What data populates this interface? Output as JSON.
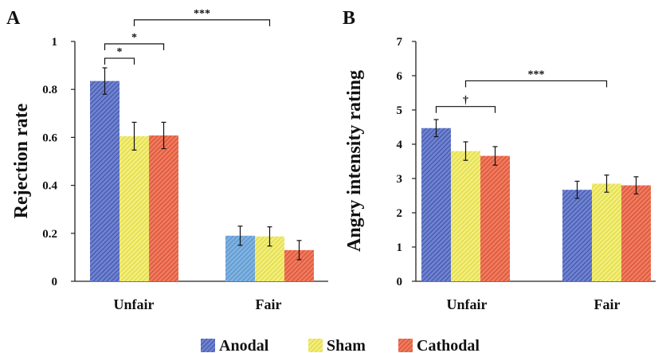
{
  "legend": [
    {
      "name": "Anodal",
      "color": "#4a5fb5",
      "pattern": "hatch"
    },
    {
      "name": "Sham",
      "color": "#e8e04c",
      "pattern": "hatch"
    },
    {
      "name": "Cathodal",
      "color": "#e0553a",
      "pattern": "hatch"
    }
  ],
  "chart_data": [
    {
      "type": "bar",
      "panel_label": "A",
      "ylabel": "Rejection rate",
      "xlabel": "",
      "ylim": [
        0,
        1
      ],
      "yticks": [
        "0",
        "0.2",
        "0.4",
        "0.6",
        "0.8",
        "1"
      ],
      "categories": [
        "Unfair",
        "Fair"
      ],
      "series": [
        {
          "name": "Anodal",
          "values": [
            0.835,
            0.19
          ],
          "errors": [
            0.055,
            0.04
          ]
        },
        {
          "name": "Sham",
          "values": [
            0.605,
            0.187
          ],
          "errors": [
            0.058,
            0.04
          ]
        },
        {
          "name": "Cathodal",
          "values": [
            0.608,
            0.13
          ],
          "errors": [
            0.055,
            0.04
          ]
        }
      ],
      "fair_anodal_color": "#5b9bd5",
      "significance": [
        {
          "from": [
            0,
            0
          ],
          "to": [
            0,
            1
          ],
          "label": "*",
          "y": 0.93
        },
        {
          "from": [
            0,
            0
          ],
          "to": [
            0,
            2
          ],
          "label": "*",
          "y": 0.99
        },
        {
          "from": [
            0,
            1
          ],
          "to": [
            1,
            1
          ],
          "label": "***",
          "y": 1.09
        }
      ],
      "grid": false
    },
    {
      "type": "bar",
      "panel_label": "B",
      "ylabel": "Angry intensity rating",
      "xlabel": "",
      "ylim": [
        0,
        7
      ],
      "yticks": [
        "0",
        "1",
        "2",
        "3",
        "4",
        "5",
        "6",
        "7"
      ],
      "categories": [
        "Unfair",
        "Fair"
      ],
      "series": [
        {
          "name": "Anodal",
          "values": [
            4.47,
            2.67
          ],
          "errors": [
            0.25,
            0.25
          ]
        },
        {
          "name": "Sham",
          "values": [
            3.8,
            2.85
          ],
          "errors": [
            0.27,
            0.25
          ]
        },
        {
          "name": "Cathodal",
          "values": [
            3.66,
            2.8
          ],
          "errors": [
            0.27,
            0.25
          ]
        }
      ],
      "significance": [
        {
          "from": [
            0,
            0
          ],
          "to": [
            0,
            2
          ],
          "label": "†",
          "y": 5.1
        },
        {
          "from": [
            0,
            1
          ],
          "to": [
            1,
            1
          ],
          "label": "***",
          "y": 5.85
        }
      ],
      "grid": false
    }
  ]
}
